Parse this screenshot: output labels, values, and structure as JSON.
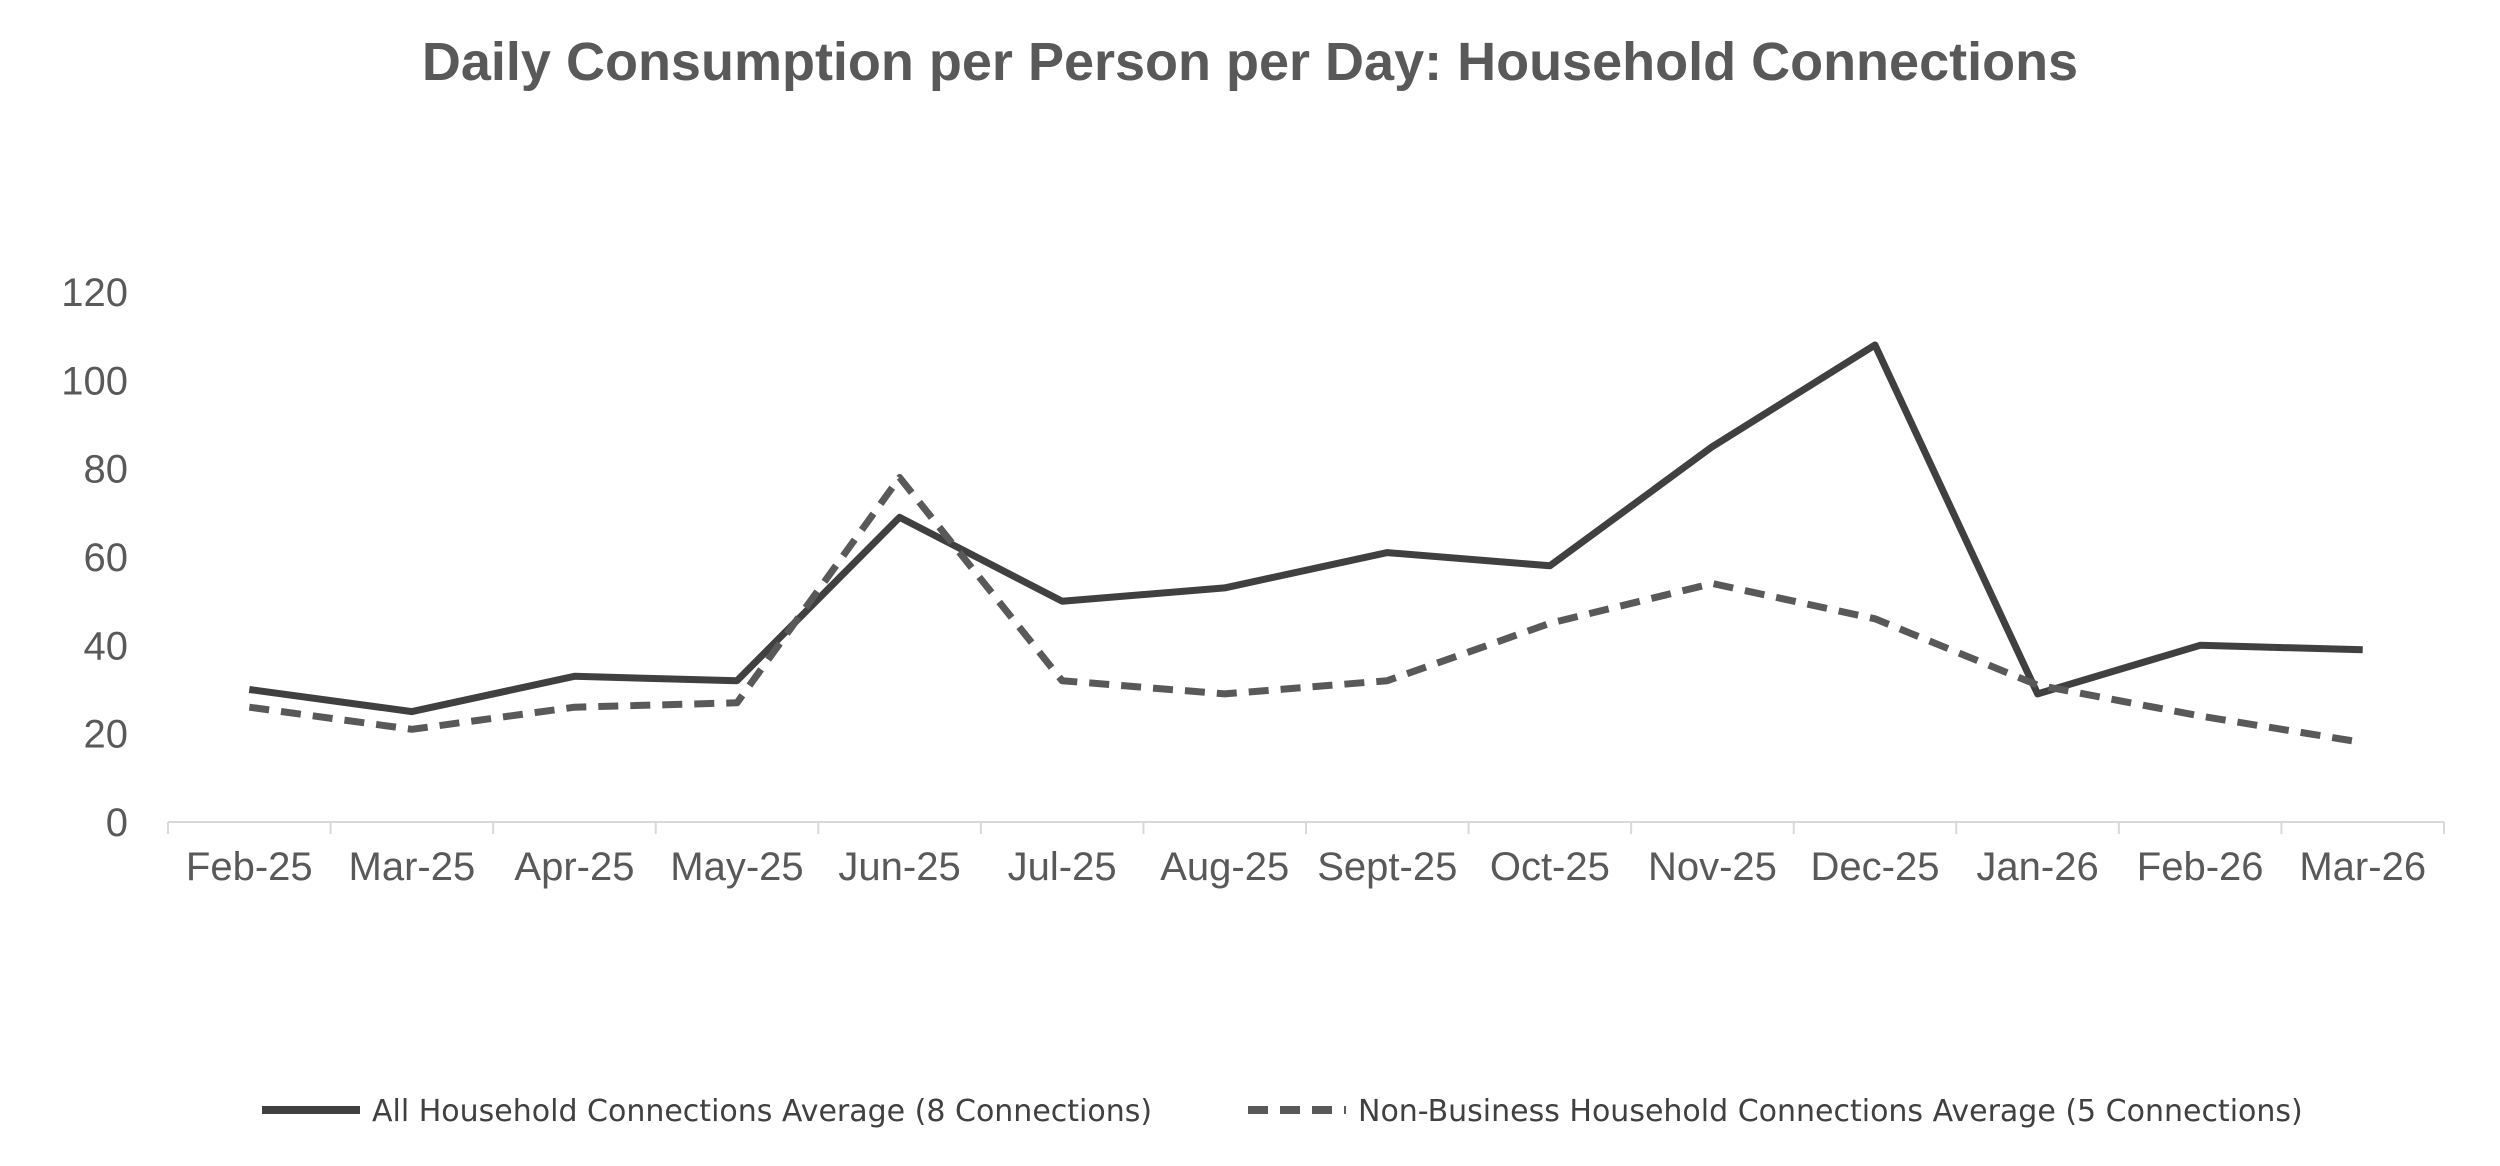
{
  "chart_data": {
    "type": "line",
    "title": "Daily Consumption per Person per Day: Household Connections",
    "xlabel": "",
    "ylabel": "",
    "categories": [
      "Feb-25",
      "Mar-25",
      "Apr-25",
      "May-25",
      "Jun-25",
      "Jul-25",
      "Aug-25",
      "Sept-25",
      "Oct-25",
      "Nov-25",
      "Dec-25",
      "Jan-26",
      "Feb-26",
      "Mar-26"
    ],
    "y_ticks": [
      "0",
      "20",
      "40",
      "60",
      "80",
      "100",
      "120"
    ],
    "ylim": [
      0,
      120
    ],
    "grid": false,
    "legend_position": "bottom",
    "series": [
      {
        "name": "All Household Connections Average (8 Connections)",
        "style": "solid",
        "color": "#404040",
        "values": [
          30,
          25,
          33,
          32,
          69,
          50,
          53,
          61,
          58,
          85,
          108,
          29,
          40,
          39
        ]
      },
      {
        "name": "Non-Business Household Connections Average (5 Connections)",
        "style": "dashed",
        "color": "#595959",
        "values": [
          26,
          21,
          26,
          27,
          78,
          32,
          29,
          32,
          45,
          54,
          46,
          31,
          24,
          18
        ]
      }
    ]
  }
}
